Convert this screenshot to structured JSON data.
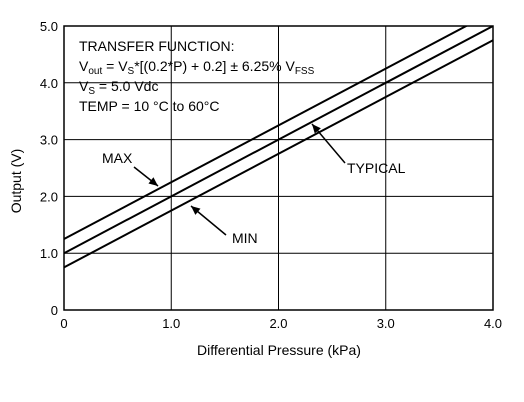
{
  "chart_data": {
    "type": "line",
    "xlabel": "Differential Pressure (kPa)",
    "ylabel": "Output (V)",
    "xlim": [
      0,
      4.0
    ],
    "ylim": [
      0,
      5.0
    ],
    "x_ticks": [
      "0",
      "1.0",
      "2.0",
      "3.0",
      "4.0"
    ],
    "y_ticks": [
      "0",
      "1.0",
      "2.0",
      "3.0",
      "4.0",
      "5.0"
    ],
    "grid": true,
    "series": [
      {
        "name": "MAX",
        "x": [
          0,
          4.0
        ],
        "y": [
          1.25,
          5.25
        ]
      },
      {
        "name": "TYPICAL",
        "x": [
          0,
          4.0
        ],
        "y": [
          1.0,
          5.0
        ]
      },
      {
        "name": "MIN",
        "x": [
          0,
          4.0
        ],
        "y": [
          0.75,
          4.75
        ]
      }
    ],
    "annotations": {
      "max_label": "MAX",
      "typical_label": "TYPICAL",
      "min_label": "MIN"
    },
    "text_box": {
      "line1": "TRANSFER FUNCTION:",
      "line2": {
        "a": "V",
        "a_sub": "out",
        "b": " = V",
        "b_sub": "S",
        "c": "*[(0.2*P) + 0.2] ± 6.25% V",
        "c_sub": "FSS"
      },
      "line3": {
        "a": "V",
        "a_sub": "S",
        "b": " = 5.0 Vdc"
      },
      "line4": "TEMP = 10 °C to 60°C"
    }
  }
}
